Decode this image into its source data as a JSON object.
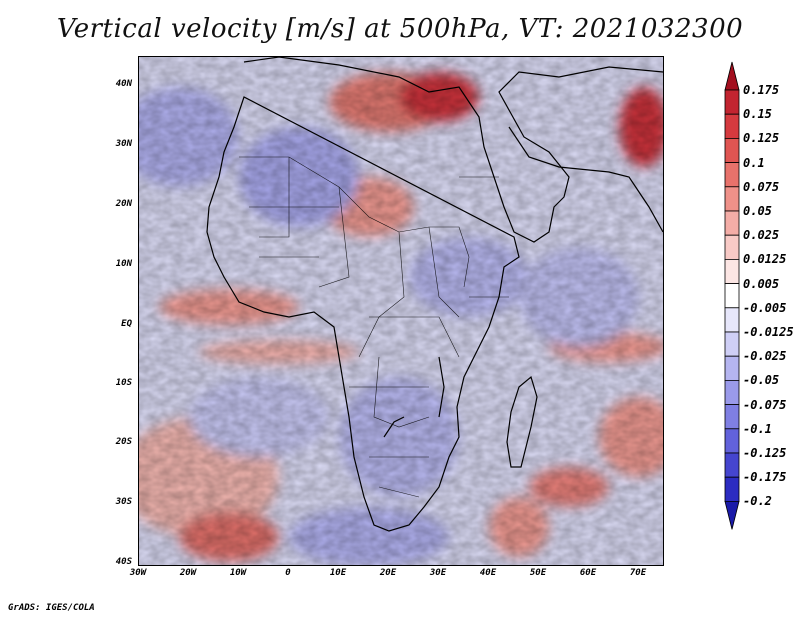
{
  "title": "Vertical velocity [m/s] at 500hPa, VT: 2021032300",
  "footer": "GrADS: IGES/COLA",
  "map": {
    "region": "Africa",
    "field": "vertical velocity at 500hPa",
    "lat_labels": [
      "40N",
      "30N",
      "20N",
      "10N",
      "EQ",
      "10S",
      "20S",
      "30S",
      "40S"
    ],
    "lon_labels": [
      "30W",
      "20W",
      "10W",
      "0",
      "10E",
      "20E",
      "30E",
      "40E",
      "50E",
      "60E",
      "70E"
    ]
  },
  "colorbar": {
    "labels": [
      "0.175",
      "0.15",
      "0.125",
      "0.1",
      "0.075",
      "0.05",
      "0.025",
      "0.0125",
      "0.005",
      "-0.005",
      "-0.0125",
      "-0.025",
      "-0.05",
      "-0.075",
      "-0.1",
      "-0.125",
      "-0.175",
      "-0.2"
    ],
    "colors": [
      "#a30f1f",
      "#c22430",
      "#d53a3f",
      "#e05552",
      "#e8726b",
      "#ef9189",
      "#f4ada7",
      "#f8cac6",
      "#fce6e4",
      "#ffffff",
      "#e7e7fb",
      "#cfcff6",
      "#b5b5f0",
      "#9a9aea",
      "#7f7fe3",
      "#6262db",
      "#4545cf",
      "#2c2cc1",
      "#1a1aa8"
    ]
  }
}
